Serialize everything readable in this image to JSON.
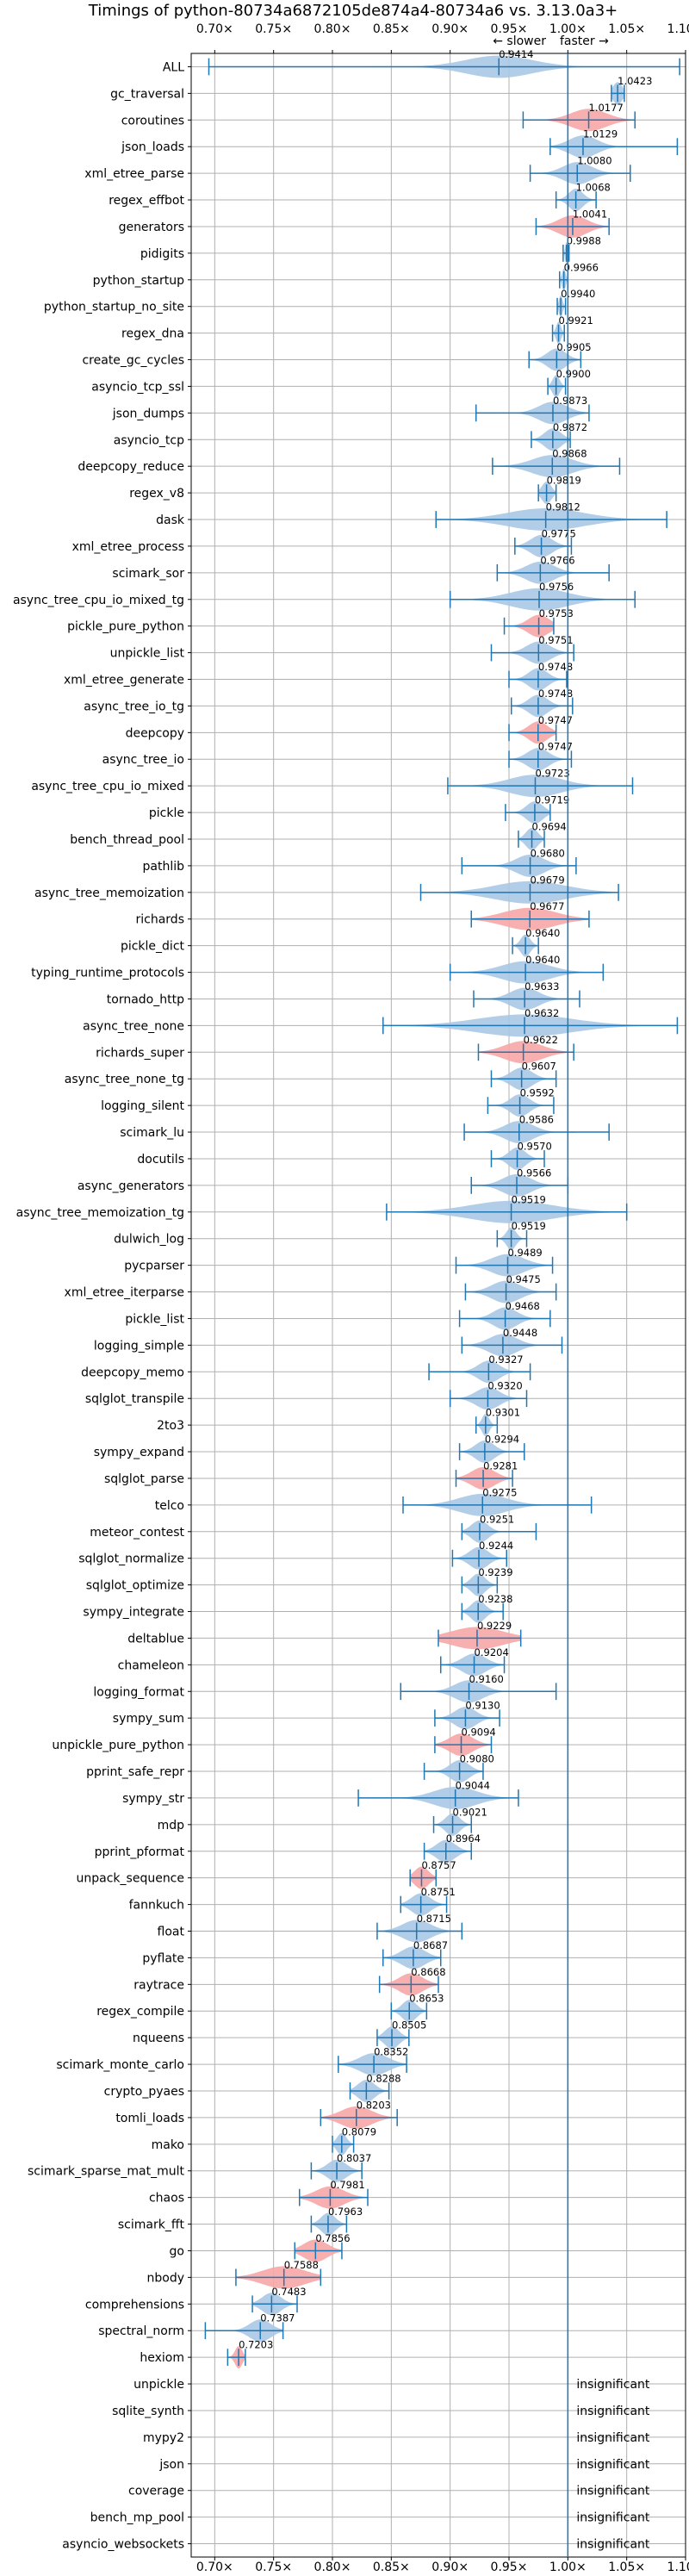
{
  "chart_data": {
    "type": "violin",
    "title": "Timings of python-80734a6872105de874a4-80734a6 vs. 3.13.0a3+",
    "direction_slower": "← slower",
    "direction_faster": "faster →",
    "xlim": [
      0.68,
      1.1
    ],
    "x_ticks": [
      0.7,
      0.75,
      0.8,
      0.85,
      0.9,
      0.95,
      1.0,
      1.05,
      1.1
    ],
    "x_tick_labels": [
      "0.70×",
      "0.75×",
      "0.80×",
      "0.85×",
      "0.90×",
      "0.95×",
      "1.00×",
      "1.05×",
      "1.10×"
    ],
    "reference_line": 1.0,
    "colors": {
      "violin": "#a9c8e4",
      "highlight_violin": "#f7a6a6",
      "line": "#1f77b4",
      "grid": "#b0b0b0"
    },
    "insignificant_label": "insignificant",
    "benchmarks": [
      {
        "name": "ALL",
        "value": 0.9414,
        "min": 0.695,
        "max": 1.095,
        "spread": 0.028,
        "highlight": false
      },
      {
        "name": "gc_traversal",
        "value": 1.0423,
        "min": 1.037,
        "max": 1.048,
        "spread": 0.004,
        "highlight": false
      },
      {
        "name": "coroutines",
        "value": 1.0177,
        "min": 0.962,
        "max": 1.057,
        "spread": 0.015,
        "highlight": true
      },
      {
        "name": "json_loads",
        "value": 1.0129,
        "min": 0.985,
        "max": 1.093,
        "spread": 0.012,
        "highlight": false
      },
      {
        "name": "xml_etree_parse",
        "value": 1.008,
        "min": 0.968,
        "max": 1.053,
        "spread": 0.012,
        "highlight": false
      },
      {
        "name": "regex_effbot",
        "value": 1.0068,
        "min": 0.99,
        "max": 1.024,
        "spread": 0.006,
        "highlight": false
      },
      {
        "name": "generators",
        "value": 1.0041,
        "min": 0.973,
        "max": 1.035,
        "spread": 0.012,
        "highlight": true
      },
      {
        "name": "pidigits",
        "value": 0.9988,
        "min": 0.996,
        "max": 1.001,
        "spread": 0.001,
        "highlight": false
      },
      {
        "name": "python_startup",
        "value": 0.9966,
        "min": 0.993,
        "max": 1.0,
        "spread": 0.0015,
        "highlight": false
      },
      {
        "name": "python_startup_no_site",
        "value": 0.994,
        "min": 0.991,
        "max": 0.998,
        "spread": 0.0015,
        "highlight": false
      },
      {
        "name": "regex_dna",
        "value": 0.9921,
        "min": 0.987,
        "max": 0.997,
        "spread": 0.002,
        "highlight": false
      },
      {
        "name": "create_gc_cycles",
        "value": 0.9905,
        "min": 0.967,
        "max": 1.011,
        "spread": 0.008,
        "highlight": false
      },
      {
        "name": "asyncio_tcp_ssl",
        "value": 0.99,
        "min": 0.983,
        "max": 0.998,
        "spread": 0.003,
        "highlight": false
      },
      {
        "name": "json_dumps",
        "value": 0.9873,
        "min": 0.922,
        "max": 1.018,
        "spread": 0.012,
        "highlight": false
      },
      {
        "name": "asyncio_tcp",
        "value": 0.9872,
        "min": 0.969,
        "max": 1.002,
        "spread": 0.007,
        "highlight": false
      },
      {
        "name": "deepcopy_reduce",
        "value": 0.9868,
        "min": 0.936,
        "max": 1.044,
        "spread": 0.017,
        "highlight": false
      },
      {
        "name": "regex_v8",
        "value": 0.9819,
        "min": 0.975,
        "max": 0.99,
        "spread": 0.004,
        "highlight": false
      },
      {
        "name": "dask",
        "value": 0.9812,
        "min": 0.888,
        "max": 1.084,
        "spread": 0.032,
        "highlight": false
      },
      {
        "name": "xml_etree_process",
        "value": 0.9775,
        "min": 0.955,
        "max": 1.003,
        "spread": 0.009,
        "highlight": false
      },
      {
        "name": "scimark_sor",
        "value": 0.9766,
        "min": 0.94,
        "max": 1.035,
        "spread": 0.012,
        "highlight": false
      },
      {
        "name": "async_tree_cpu_io_mixed_tg",
        "value": 0.9756,
        "min": 0.9,
        "max": 1.057,
        "spread": 0.024,
        "highlight": false
      },
      {
        "name": "pickle_pure_python",
        "value": 0.9753,
        "min": 0.946,
        "max": 0.988,
        "spread": 0.009,
        "highlight": true
      },
      {
        "name": "unpickle_list",
        "value": 0.9751,
        "min": 0.935,
        "max": 1.005,
        "spread": 0.01,
        "highlight": false
      },
      {
        "name": "xml_etree_generate",
        "value": 0.9748,
        "min": 0.95,
        "max": 0.999,
        "spread": 0.008,
        "highlight": false
      },
      {
        "name": "async_tree_io_tg",
        "value": 0.9748,
        "min": 0.952,
        "max": 1.004,
        "spread": 0.008,
        "highlight": false
      },
      {
        "name": "deepcopy",
        "value": 0.9747,
        "min": 0.95,
        "max": 0.99,
        "spread": 0.008,
        "highlight": true
      },
      {
        "name": "async_tree_io",
        "value": 0.9747,
        "min": 0.95,
        "max": 1.003,
        "spread": 0.009,
        "highlight": false
      },
      {
        "name": "async_tree_cpu_io_mixed",
        "value": 0.9723,
        "min": 0.898,
        "max": 1.055,
        "spread": 0.022,
        "highlight": false
      },
      {
        "name": "pickle",
        "value": 0.9719,
        "min": 0.947,
        "max": 0.985,
        "spread": 0.007,
        "highlight": false
      },
      {
        "name": "bench_thread_pool",
        "value": 0.9694,
        "min": 0.958,
        "max": 0.98,
        "spread": 0.005,
        "highlight": false
      },
      {
        "name": "pathlib",
        "value": 0.968,
        "min": 0.91,
        "max": 1.007,
        "spread": 0.012,
        "highlight": false
      },
      {
        "name": "async_tree_memoization",
        "value": 0.9679,
        "min": 0.875,
        "max": 1.043,
        "spread": 0.03,
        "highlight": false
      },
      {
        "name": "richards",
        "value": 0.9677,
        "min": 0.918,
        "max": 1.018,
        "spread": 0.022,
        "highlight": true
      },
      {
        "name": "pickle_dict",
        "value": 0.964,
        "min": 0.953,
        "max": 0.975,
        "spread": 0.004,
        "highlight": false
      },
      {
        "name": "typing_runtime_protocols",
        "value": 0.964,
        "min": 0.9,
        "max": 1.03,
        "spread": 0.02,
        "highlight": false
      },
      {
        "name": "tornado_http",
        "value": 0.9633,
        "min": 0.92,
        "max": 1.01,
        "spread": 0.012,
        "highlight": false
      },
      {
        "name": "async_tree_none",
        "value": 0.9632,
        "min": 0.843,
        "max": 1.093,
        "spread": 0.04,
        "highlight": false
      },
      {
        "name": "richards_super",
        "value": 0.9622,
        "min": 0.924,
        "max": 1.005,
        "spread": 0.016,
        "highlight": true
      },
      {
        "name": "async_tree_none_tg",
        "value": 0.9607,
        "min": 0.935,
        "max": 0.99,
        "spread": 0.009,
        "highlight": false
      },
      {
        "name": "logging_silent",
        "value": 0.9592,
        "min": 0.932,
        "max": 0.988,
        "spread": 0.008,
        "highlight": false
      },
      {
        "name": "scimark_lu",
        "value": 0.9586,
        "min": 0.912,
        "max": 1.035,
        "spread": 0.012,
        "highlight": false
      },
      {
        "name": "docutils",
        "value": 0.957,
        "min": 0.935,
        "max": 0.98,
        "spread": 0.007,
        "highlight": false
      },
      {
        "name": "async_generators",
        "value": 0.9566,
        "min": 0.918,
        "max": 1.0,
        "spread": 0.012,
        "highlight": false
      },
      {
        "name": "async_tree_memoization_tg",
        "value": 0.9519,
        "min": 0.846,
        "max": 1.05,
        "spread": 0.035,
        "highlight": false
      },
      {
        "name": "dulwich_log",
        "value": 0.9519,
        "min": 0.94,
        "max": 0.965,
        "spread": 0.004,
        "highlight": false
      },
      {
        "name": "pycparser",
        "value": 0.9489,
        "min": 0.905,
        "max": 0.987,
        "spread": 0.014,
        "highlight": false
      },
      {
        "name": "xml_etree_iterparse",
        "value": 0.9475,
        "min": 0.913,
        "max": 0.99,
        "spread": 0.012,
        "highlight": false
      },
      {
        "name": "pickle_list",
        "value": 0.9468,
        "min": 0.908,
        "max": 0.985,
        "spread": 0.01,
        "highlight": false
      },
      {
        "name": "logging_simple",
        "value": 0.9448,
        "min": 0.91,
        "max": 0.995,
        "spread": 0.012,
        "highlight": false
      },
      {
        "name": "deepcopy_memo",
        "value": 0.9327,
        "min": 0.882,
        "max": 0.968,
        "spread": 0.009,
        "highlight": false
      },
      {
        "name": "sqlglot_transpile",
        "value": 0.932,
        "min": 0.9,
        "max": 0.965,
        "spread": 0.01,
        "highlight": false
      },
      {
        "name": "2to3",
        "value": 0.9301,
        "min": 0.922,
        "max": 0.94,
        "spread": 0.003,
        "highlight": false
      },
      {
        "name": "sympy_expand",
        "value": 0.9294,
        "min": 0.908,
        "max": 0.963,
        "spread": 0.008,
        "highlight": false
      },
      {
        "name": "sqlglot_parse",
        "value": 0.9281,
        "min": 0.905,
        "max": 0.953,
        "spread": 0.01,
        "highlight": true
      },
      {
        "name": "telco",
        "value": 0.9275,
        "min": 0.86,
        "max": 1.02,
        "spread": 0.02,
        "highlight": false
      },
      {
        "name": "meteor_contest",
        "value": 0.9251,
        "min": 0.91,
        "max": 0.973,
        "spread": 0.007,
        "highlight": false
      },
      {
        "name": "sqlglot_normalize",
        "value": 0.9244,
        "min": 0.902,
        "max": 0.948,
        "spread": 0.008,
        "highlight": false
      },
      {
        "name": "sqlglot_optimize",
        "value": 0.9239,
        "min": 0.91,
        "max": 0.94,
        "spread": 0.006,
        "highlight": false
      },
      {
        "name": "sympy_integrate",
        "value": 0.9238,
        "min": 0.91,
        "max": 0.945,
        "spread": 0.006,
        "highlight": false
      },
      {
        "name": "deltablue",
        "value": 0.9229,
        "min": 0.89,
        "max": 0.96,
        "spread": 0.022,
        "highlight": true
      },
      {
        "name": "chameleon",
        "value": 0.9204,
        "min": 0.892,
        "max": 0.946,
        "spread": 0.01,
        "highlight": false
      },
      {
        "name": "logging_format",
        "value": 0.916,
        "min": 0.858,
        "max": 0.99,
        "spread": 0.012,
        "highlight": false
      },
      {
        "name": "sympy_sum",
        "value": 0.913,
        "min": 0.887,
        "max": 0.942,
        "spread": 0.009,
        "highlight": false
      },
      {
        "name": "unpickle_pure_python",
        "value": 0.9094,
        "min": 0.887,
        "max": 0.935,
        "spread": 0.01,
        "highlight": true
      },
      {
        "name": "pprint_safe_repr",
        "value": 0.908,
        "min": 0.878,
        "max": 0.928,
        "spread": 0.008,
        "highlight": false
      },
      {
        "name": "sympy_str",
        "value": 0.9044,
        "min": 0.822,
        "max": 0.958,
        "spread": 0.018,
        "highlight": false
      },
      {
        "name": "mdp",
        "value": 0.9021,
        "min": 0.886,
        "max": 0.918,
        "spread": 0.006,
        "highlight": false
      },
      {
        "name": "pprint_pformat",
        "value": 0.8964,
        "min": 0.878,
        "max": 0.918,
        "spread": 0.008,
        "highlight": false
      },
      {
        "name": "unpack_sequence",
        "value": 0.8757,
        "min": 0.866,
        "max": 0.888,
        "spread": 0.006,
        "highlight": true
      },
      {
        "name": "fannkuch",
        "value": 0.8751,
        "min": 0.858,
        "max": 0.897,
        "spread": 0.008,
        "highlight": false
      },
      {
        "name": "float",
        "value": 0.8715,
        "min": 0.838,
        "max": 0.91,
        "spread": 0.012,
        "highlight": false
      },
      {
        "name": "pyflate",
        "value": 0.8687,
        "min": 0.843,
        "max": 0.892,
        "spread": 0.01,
        "highlight": false
      },
      {
        "name": "raytrace",
        "value": 0.8668,
        "min": 0.84,
        "max": 0.89,
        "spread": 0.01,
        "highlight": true
      },
      {
        "name": "regex_compile",
        "value": 0.8653,
        "min": 0.85,
        "max": 0.88,
        "spread": 0.006,
        "highlight": false
      },
      {
        "name": "nqueens",
        "value": 0.8505,
        "min": 0.838,
        "max": 0.865,
        "spread": 0.006,
        "highlight": false
      },
      {
        "name": "scimark_monte_carlo",
        "value": 0.8352,
        "min": 0.805,
        "max": 0.863,
        "spread": 0.012,
        "highlight": false
      },
      {
        "name": "crypto_pyaes",
        "value": 0.8288,
        "min": 0.815,
        "max": 0.848,
        "spread": 0.007,
        "highlight": false
      },
      {
        "name": "tomli_loads",
        "value": 0.8203,
        "min": 0.79,
        "max": 0.855,
        "spread": 0.013,
        "highlight": true
      },
      {
        "name": "mako",
        "value": 0.8079,
        "min": 0.8,
        "max": 0.818,
        "spread": 0.004,
        "highlight": false
      },
      {
        "name": "scimark_sparse_mat_mult",
        "value": 0.8037,
        "min": 0.782,
        "max": 0.825,
        "spread": 0.008,
        "highlight": false
      },
      {
        "name": "chaos",
        "value": 0.7981,
        "min": 0.772,
        "max": 0.83,
        "spread": 0.012,
        "highlight": true
      },
      {
        "name": "scimark_fft",
        "value": 0.7963,
        "min": 0.782,
        "max": 0.812,
        "spread": 0.006,
        "highlight": false
      },
      {
        "name": "go",
        "value": 0.7856,
        "min": 0.768,
        "max": 0.808,
        "spread": 0.01,
        "highlight": true
      },
      {
        "name": "nbody",
        "value": 0.7588,
        "min": 0.718,
        "max": 0.79,
        "spread": 0.018,
        "highlight": true
      },
      {
        "name": "comprehensions",
        "value": 0.7483,
        "min": 0.732,
        "max": 0.77,
        "spread": 0.008,
        "highlight": false
      },
      {
        "name": "spectral_norm",
        "value": 0.7387,
        "min": 0.692,
        "max": 0.758,
        "spread": 0.009,
        "highlight": false
      },
      {
        "name": "hexiom",
        "value": 0.7203,
        "min": 0.711,
        "max": 0.726,
        "spread": 0.003,
        "highlight": true
      },
      {
        "name": "unpickle",
        "value": null,
        "insignificant": true
      },
      {
        "name": "sqlite_synth",
        "value": null,
        "insignificant": true
      },
      {
        "name": "mypy2",
        "value": null,
        "insignificant": true
      },
      {
        "name": "json",
        "value": null,
        "insignificant": true
      },
      {
        "name": "coverage",
        "value": null,
        "insignificant": true
      },
      {
        "name": "bench_mp_pool",
        "value": null,
        "insignificant": true
      },
      {
        "name": "asyncio_websockets",
        "value": null,
        "insignificant": true
      }
    ]
  }
}
